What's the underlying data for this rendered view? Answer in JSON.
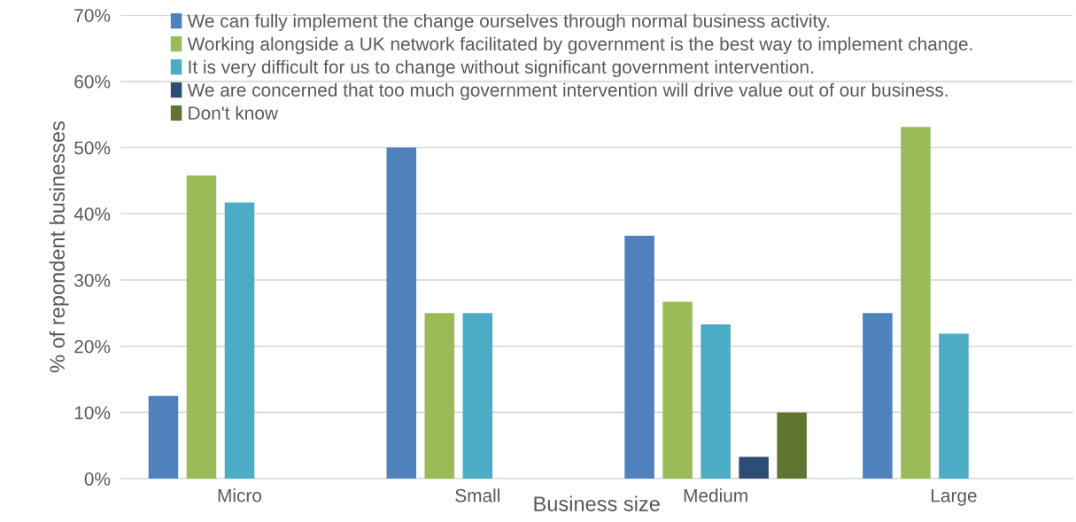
{
  "chart_data": {
    "type": "bar",
    "xlabel": "Business size",
    "ylabel": "% of repondent businesses",
    "categories": [
      "Micro",
      "Small",
      "Medium",
      "Large"
    ],
    "series": [
      {
        "name": "We can fully implement the change ourselves through normal business activity.",
        "color": "#4f81bd",
        "values": [
          12.5,
          50,
          36.7,
          25
        ]
      },
      {
        "name": "Working alongside a UK network facilitated by government is the best way to implement change.",
        "color": "#9bbb59",
        "values": [
          45.8,
          25,
          26.7,
          53.1
        ]
      },
      {
        "name": "It is very difficult for us to change without significant government intervention.",
        "color": "#4bacc6",
        "values": [
          41.7,
          25,
          23.3,
          21.9
        ]
      },
      {
        "name": "We are concerned that too much government intervention will drive value out of our business.",
        "color": "#2c4d75",
        "values": [
          0,
          0,
          3.3,
          0
        ]
      },
      {
        "name": "Don't know",
        "color": "#5f7530",
        "values": [
          0,
          0,
          10,
          0
        ]
      }
    ],
    "ylim": [
      0,
      70
    ],
    "yticks": [
      {
        "value": 0,
        "label": "0%"
      },
      {
        "value": 10,
        "label": "10%"
      },
      {
        "value": 20,
        "label": "20%"
      },
      {
        "value": 30,
        "label": "30%"
      },
      {
        "value": 40,
        "label": "40%"
      },
      {
        "value": 50,
        "label": "50%"
      },
      {
        "value": 60,
        "label": "60%"
      },
      {
        "value": 70,
        "label": "70%"
      }
    ],
    "grid": "y",
    "legend": "top left"
  }
}
